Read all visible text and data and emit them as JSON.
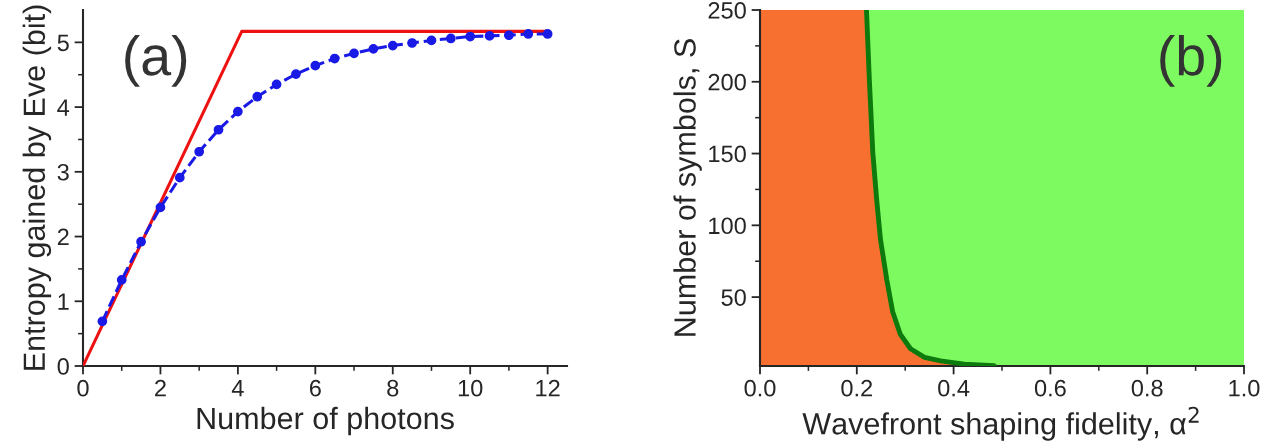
{
  "chart_data": [
    {
      "type": "line",
      "xlabel": "Number of photons",
      "ylabel": "Entropy gained by Eve (bit)",
      "annotations": [
        "(a)"
      ],
      "xlim": [
        0,
        12.5
      ],
      "ylim": [
        0,
        5.5
      ],
      "xticks": [
        0,
        2,
        4,
        6,
        8,
        10,
        12
      ],
      "yticks": [
        0,
        1,
        2,
        3,
        4,
        5
      ],
      "grid": false,
      "legend": false,
      "series": [
        {
          "color": "#ee1111",
          "marker": "none",
          "x": [
            0,
            4.1,
            12
          ],
          "values": [
            0,
            5.17,
            5.17
          ]
        },
        {
          "color": "#1a1ae6",
          "marker": "circle",
          "line_style": "dashed",
          "x": [
            0.5,
            1,
            1.5,
            2,
            2.5,
            3,
            3.5,
            4,
            4.5,
            5,
            5.5,
            6,
            6.5,
            7,
            7.5,
            8,
            8.5,
            9,
            9.5,
            10,
            10.5,
            11,
            11.5,
            12
          ],
          "values": [
            0.69,
            1.33,
            1.92,
            2.45,
            2.91,
            3.31,
            3.65,
            3.93,
            4.16,
            4.35,
            4.51,
            4.64,
            4.75,
            4.83,
            4.9,
            4.95,
            4.99,
            5.03,
            5.06,
            5.09,
            5.1,
            5.11,
            5.13,
            5.13
          ]
        }
      ]
    },
    {
      "type": "area",
      "xlabel": "Wavefront shaping fidelity, α$^{2}$",
      "ylabel": "Number of symbols, S",
      "annotations": [
        "(b)"
      ],
      "xlim": [
        0,
        1
      ],
      "ylim": [
        2,
        250
      ],
      "xticks": [
        {
          "value": 0,
          "label": "0.0"
        },
        0.2,
        0.4,
        0.6,
        0.8,
        {
          "value": 1,
          "label": "1.0"
        }
      ],
      "yticks": [
        50,
        100,
        150,
        200,
        250
      ],
      "grid": false,
      "legend": false,
      "bands": [
        {
          "axis": "x",
          "from": 0,
          "to": 1,
          "color": "#7dfa5f"
        }
      ],
      "series": [
        {
          "color": "#f77030",
          "x": [
            0,
            0.22,
            0.226,
            0.233,
            0.241,
            0.249,
            0.262,
            0.274,
            0.29,
            0.311,
            0.34,
            0.373,
            0.422,
            0.484
          ],
          "values": [
            250,
            250,
            201,
            151,
            118,
            90,
            62,
            40,
            24,
            14,
            8,
            5.6,
            3.3,
            2.2
          ]
        },
        {
          "type": "line",
          "color": "#0c7a0c",
          "x": [
            0.22,
            0.226,
            0.233,
            0.241,
            0.249,
            0.262,
            0.274,
            0.29,
            0.311,
            0.34,
            0.373,
            0.422,
            0.484
          ],
          "values": [
            250,
            201,
            151,
            118,
            90,
            62,
            40,
            24,
            14,
            8,
            5.6,
            3.3,
            2.2
          ]
        }
      ]
    }
  ]
}
